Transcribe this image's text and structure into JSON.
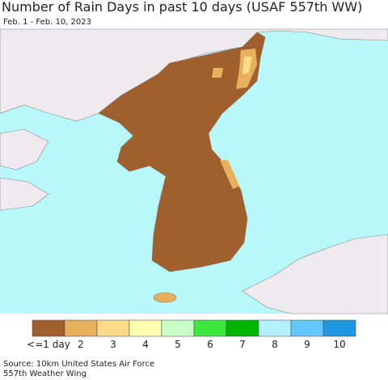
{
  "header": {
    "title": "Number of Rain Days in past 10 days (USAF 557th WW)",
    "subtitle": "Feb. 1 - Feb. 10, 2023"
  },
  "legend": {
    "items": [
      {
        "label": "<=1 day",
        "color": "#a0602e"
      },
      {
        "label": "2",
        "color": "#e6b05c"
      },
      {
        "label": "3",
        "color": "#fdd98a"
      },
      {
        "label": "4",
        "color": "#ffffb0"
      },
      {
        "label": "5",
        "color": "#c8ffc8"
      },
      {
        "label": "6",
        "color": "#3ce83c"
      },
      {
        "label": "7",
        "color": "#00b400"
      },
      {
        "label": "8",
        "color": "#b4f0ff"
      },
      {
        "label": "9",
        "color": "#64c8ff"
      },
      {
        "label": "10",
        "color": "#1e96e0"
      }
    ]
  },
  "footer": {
    "source": [
      "Source: 10km United States Air Force",
      "557th Weather Wing"
    ]
  }
}
